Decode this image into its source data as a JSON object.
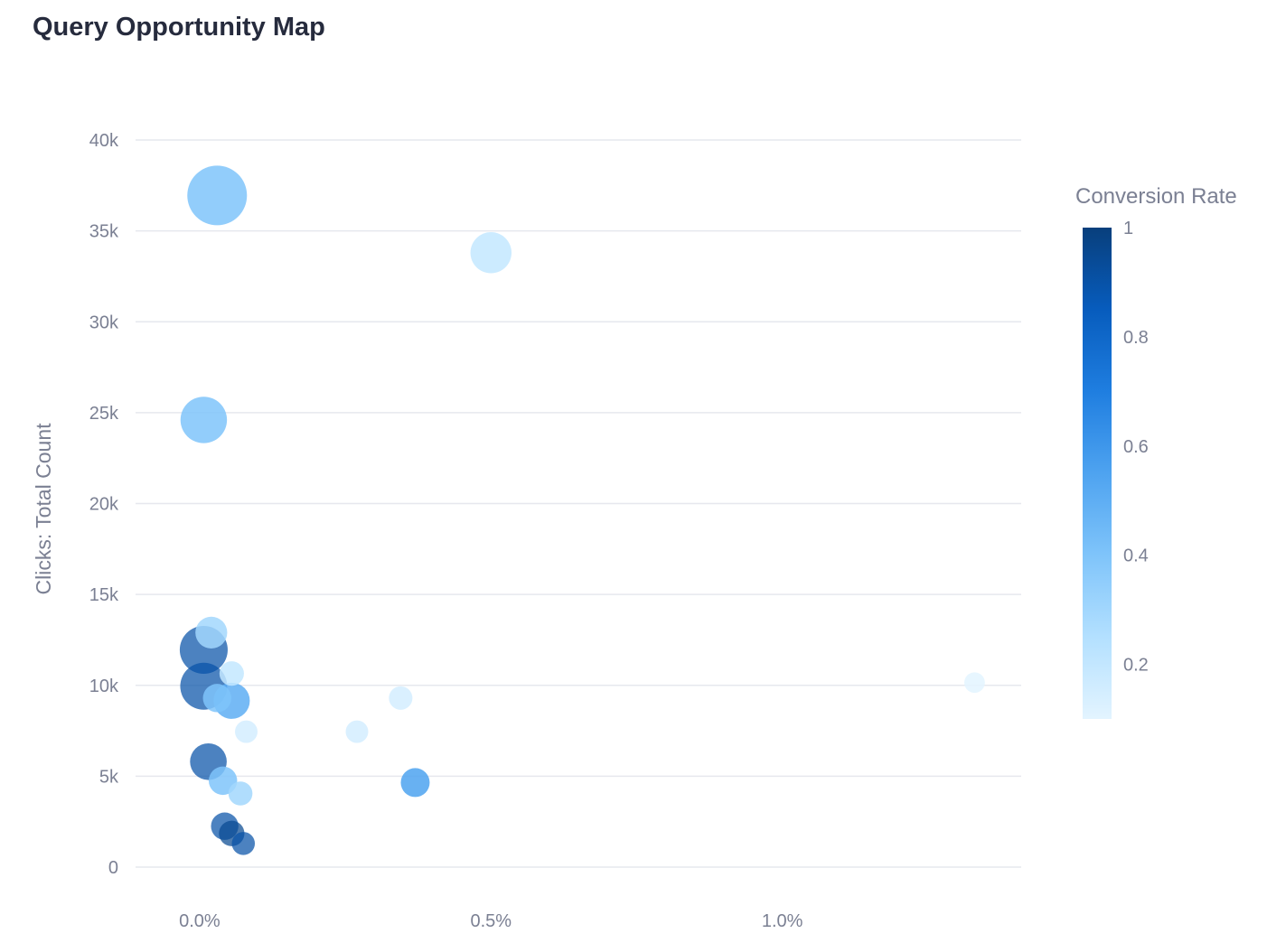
{
  "chart_data": {
    "type": "scatter",
    "title": "Query Opportunity Map",
    "xlabel": "",
    "ylabel": "Clicks: Total Count",
    "xlim": [
      -0.11,
      1.41
    ],
    "ylim": [
      0,
      40000
    ],
    "x_ticks": [
      0.0,
      0.5,
      1.0
    ],
    "x_tick_labels": [
      "0.0%",
      "0.5%",
      "1.0%"
    ],
    "y_ticks": [
      0,
      5000,
      10000,
      15000,
      20000,
      25000,
      30000,
      35000,
      40000
    ],
    "y_tick_labels": [
      "0",
      "5k",
      "10k",
      "15k",
      "20k",
      "25k",
      "30k",
      "35k",
      "40k"
    ],
    "grid": true,
    "color_scale": {
      "title": "Conversion Rate",
      "min": 0.1,
      "max": 1,
      "ticks": [
        0.2,
        0.4,
        0.6,
        0.8,
        1
      ],
      "tick_labels": [
        "0.2",
        "0.4",
        "0.6",
        "0.8",
        "1"
      ],
      "colors": [
        "#e3f4ff",
        "#b3e0ff",
        "#7fc4fa",
        "#4ea3f0",
        "#1f7ee0",
        "#075cbd",
        "#083f7c"
      ]
    },
    "size_encoding": "relative bubble size (no legend shown)",
    "points": [
      {
        "x": 0.03,
        "y": 36950,
        "size": 1.0,
        "conversion": 0.4
      },
      {
        "x": 0.5,
        "y": 33800,
        "size": 0.62,
        "conversion": 0.2
      },
      {
        "x": 0.007,
        "y": 24600,
        "size": 0.73,
        "conversion": 0.4
      },
      {
        "x": 0.02,
        "y": 12900,
        "size": 0.43,
        "conversion": 0.3
      },
      {
        "x": 0.007,
        "y": 11950,
        "size": 0.76,
        "conversion": 0.9
      },
      {
        "x": 0.007,
        "y": 9950,
        "size": 0.74,
        "conversion": 0.9
      },
      {
        "x": 0.055,
        "y": 10650,
        "size": 0.28,
        "conversion": 0.2
      },
      {
        "x": 0.03,
        "y": 9300,
        "size": 0.36,
        "conversion": 0.4
      },
      {
        "x": 0.055,
        "y": 9150,
        "size": 0.52,
        "conversion": 0.5
      },
      {
        "x": 0.345,
        "y": 9300,
        "size": 0.26,
        "conversion": 0.15
      },
      {
        "x": 1.33,
        "y": 10150,
        "size": 0.2,
        "conversion": 0.1
      },
      {
        "x": 0.08,
        "y": 7450,
        "size": 0.24,
        "conversion": 0.15
      },
      {
        "x": 0.27,
        "y": 7450,
        "size": 0.24,
        "conversion": 0.15
      },
      {
        "x": 0.015,
        "y": 5800,
        "size": 0.53,
        "conversion": 0.9
      },
      {
        "x": 0.04,
        "y": 4750,
        "size": 0.36,
        "conversion": 0.4
      },
      {
        "x": 0.07,
        "y": 4050,
        "size": 0.27,
        "conversion": 0.3
      },
      {
        "x": 0.37,
        "y": 4650,
        "size": 0.37,
        "conversion": 0.55
      },
      {
        "x": 0.043,
        "y": 2250,
        "size": 0.34,
        "conversion": 0.9
      },
      {
        "x": 0.055,
        "y": 1850,
        "size": 0.3,
        "conversion": 0.95
      },
      {
        "x": 0.075,
        "y": 1300,
        "size": 0.25,
        "conversion": 0.9
      }
    ]
  }
}
